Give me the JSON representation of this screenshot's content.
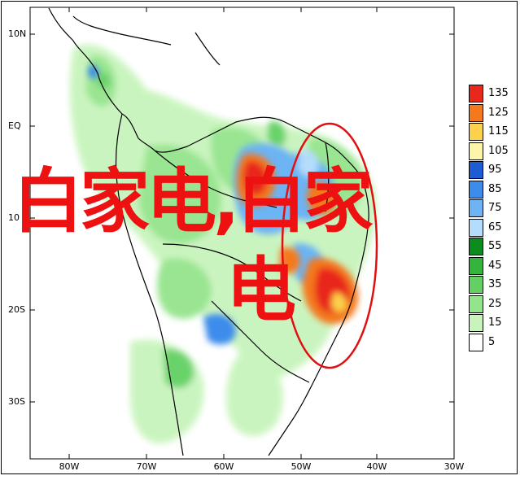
{
  "map": {
    "lat_ticks": [
      "10N",
      "EQ",
      "10",
      "20S",
      "30S"
    ],
    "lon_ticks": [
      "80W",
      "70W",
      "60W",
      "50W",
      "40W",
      "30W"
    ]
  },
  "legend": {
    "levels": [
      "135",
      "125",
      "115",
      "105",
      "95",
      "85",
      "75",
      "65",
      "55",
      "45",
      "35",
      "25",
      "15",
      "5"
    ],
    "colors": [
      "#e8281c",
      "#f4781c",
      "#fcd24c",
      "#fcf4a8",
      "#1e5cd4",
      "#3c8cec",
      "#6cb4f4",
      "#b4dcfc",
      "#0a8c1e",
      "#34b43c",
      "#64d064",
      "#94e48c",
      "#c8f4bc",
      "#ffffff"
    ]
  },
  "watermark": {
    "line1": "白家电,白家",
    "line2": "电"
  },
  "colors": {
    "watermark_red": "#ee1111",
    "ellipse_red": "#e01010"
  }
}
